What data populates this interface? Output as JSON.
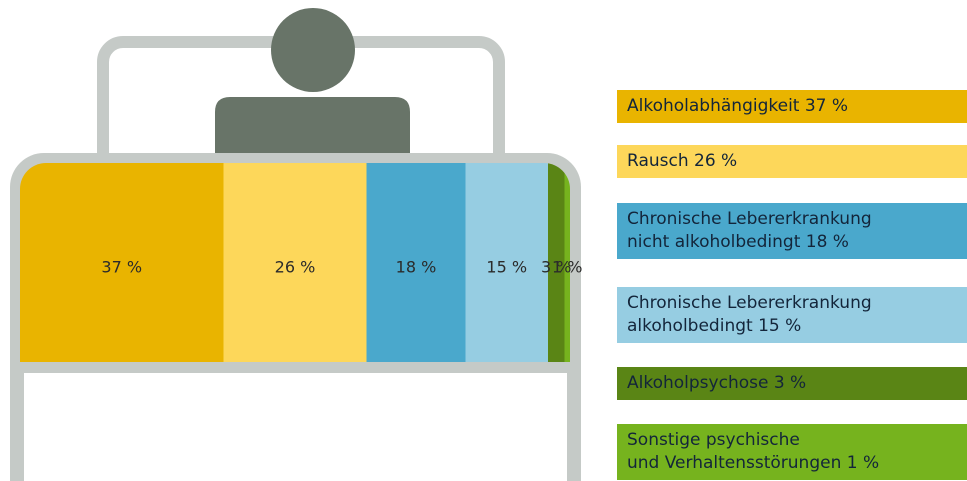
{
  "chart_data": {
    "type": "stacked_bar",
    "categories": [
      "Alkoholabhängigkeit 37 %",
      "Rausch 26 %",
      "Chronische Lebererkrankung\nnicht alkoholbedingt 18 %",
      "Chronische Lebererkrankung\nalkoholbedingt 15 %",
      "Alkoholpsychose 3 %",
      "Sonstige psychische\nund Verhaltensstörungen 1 %"
    ],
    "values": [
      37,
      26,
      18,
      15,
      3,
      1
    ],
    "value_labels": [
      "37 %",
      "26 %",
      "18 %",
      "15 %",
      "3 %",
      "1 %"
    ],
    "colors": [
      "#e9b400",
      "#fdd75a",
      "#4aa8cc",
      "#96cde2",
      "#5a8515",
      "#76b31e"
    ]
  }
}
